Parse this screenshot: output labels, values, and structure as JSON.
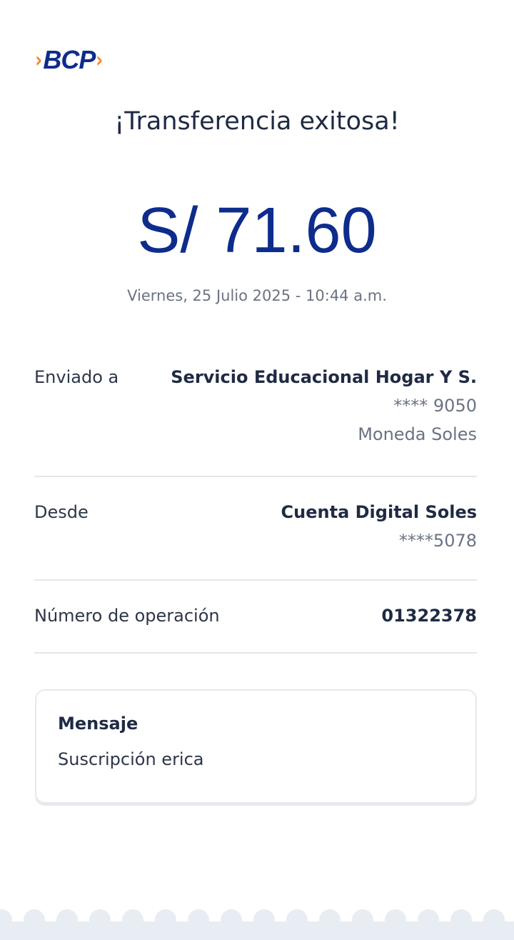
{
  "logo": {
    "text": "BCP",
    "colors": {
      "brand_blue": "#0d2c8c",
      "brand_orange": "#f5841f"
    }
  },
  "title": "¡Transferencia exitosa!",
  "amount": "S/ 71.60",
  "datetime": "Viernes, 25 Julio 2025 - 10:44 a.m.",
  "details": [
    {
      "label": "Enviado a",
      "value": "Servicio Educacional Hogar Y S.",
      "sub": [
        "**** 9050",
        "Moneda Soles"
      ]
    },
    {
      "label": "Desde",
      "value": "Cuenta Digital Soles",
      "sub": [
        "****5078"
      ]
    },
    {
      "label": "Número de operación",
      "value": "01322378"
    }
  ],
  "message": {
    "heading": "Mensaje",
    "text": "Suscripción erica"
  }
}
